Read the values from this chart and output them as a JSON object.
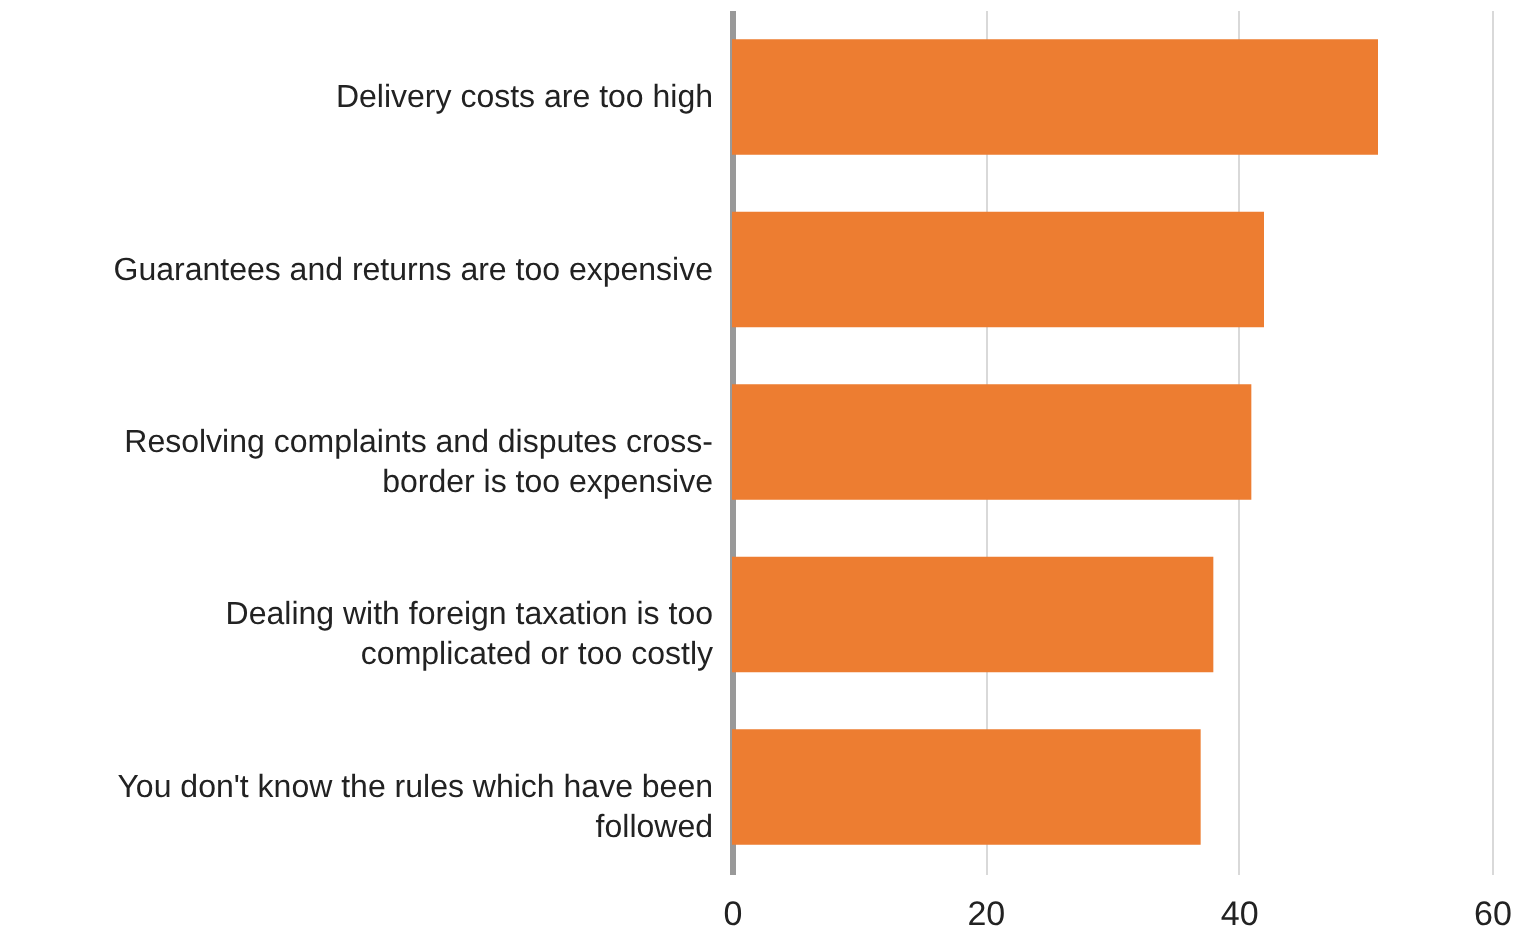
{
  "chart_data": {
    "type": "bar",
    "orientation": "horizontal",
    "categories": [
      "Delivery costs are too high",
      "Guarantees and returns are too expensive",
      "Resolving complaints and disputes cross-border is too expensive",
      "Dealing with foreign taxation is too complicated or too costly",
      "You don't know the rules which have been followed"
    ],
    "values": [
      51,
      42,
      41,
      38,
      37
    ],
    "color": "#ed7d31",
    "xlim": [
      0,
      60
    ],
    "xticks": [
      0,
      20,
      40,
      60
    ],
    "grid": "x"
  }
}
